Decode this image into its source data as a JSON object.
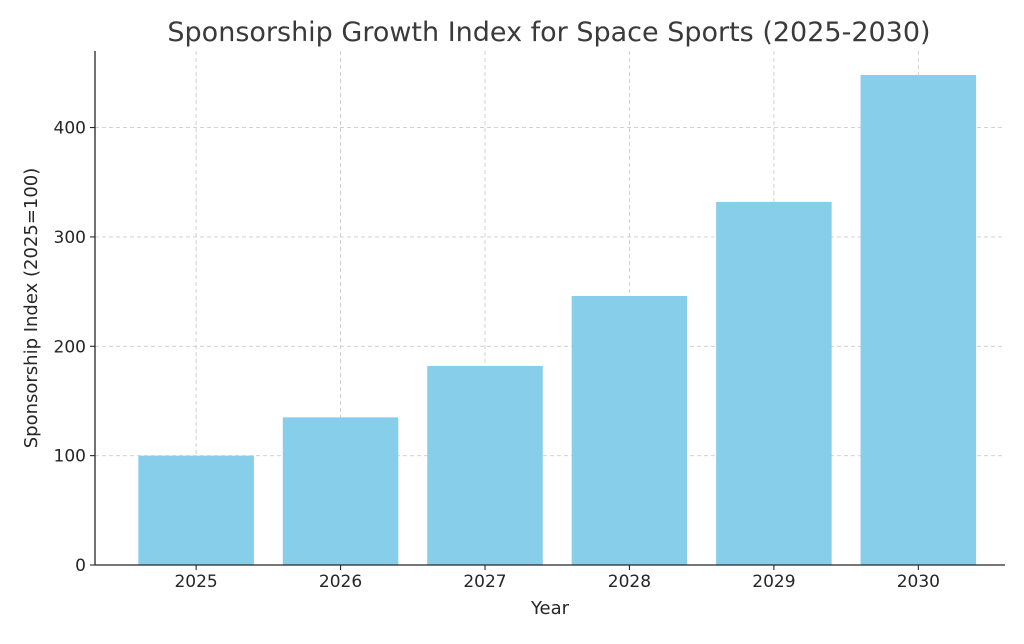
{
  "chart_data": {
    "type": "bar",
    "title": "Sponsorship Growth Index for Space Sports (2025-2030)",
    "xlabel": "Year",
    "ylabel": "Sponsorship Index (2025=100)",
    "categories": [
      "2025",
      "2026",
      "2027",
      "2028",
      "2029",
      "2030"
    ],
    "values": [
      100,
      135,
      182,
      246,
      332,
      448
    ],
    "ylim": [
      0,
      470
    ],
    "yticks": [
      0,
      100,
      200,
      300,
      400
    ],
    "grid": true,
    "bar_color": "#87ceeb",
    "legend": "none"
  }
}
